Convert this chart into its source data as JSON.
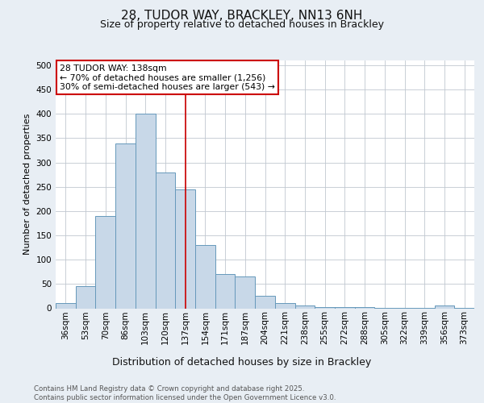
{
  "title_line1": "28, TUDOR WAY, BRACKLEY, NN13 6NH",
  "title_line2": "Size of property relative to detached houses in Brackley",
  "xlabel": "Distribution of detached houses by size in Brackley",
  "ylabel": "Number of detached properties",
  "footnote": "Contains HM Land Registry data © Crown copyright and database right 2025.\nContains public sector information licensed under the Open Government Licence v3.0.",
  "bin_labels": [
    "36sqm",
    "53sqm",
    "70sqm",
    "86sqm",
    "103sqm",
    "120sqm",
    "137sqm",
    "154sqm",
    "171sqm",
    "187sqm",
    "204sqm",
    "221sqm",
    "238sqm",
    "255sqm",
    "272sqm",
    "288sqm",
    "305sqm",
    "322sqm",
    "339sqm",
    "356sqm",
    "373sqm"
  ],
  "bar_heights": [
    10,
    45,
    190,
    340,
    400,
    280,
    245,
    130,
    70,
    65,
    25,
    10,
    5,
    3,
    2,
    3,
    1,
    1,
    1,
    5,
    1
  ],
  "bar_color": "#c8d8e8",
  "bar_edgecolor": "#6699bb",
  "vline_x_index": 6,
  "vline_color": "#cc0000",
  "annotation_text": "28 TUDOR WAY: 138sqm\n← 70% of detached houses are smaller (1,256)\n30% of semi-detached houses are larger (543) →",
  "annotation_box_color": "#ffffff",
  "annotation_box_edgecolor": "#cc0000",
  "ylim": [
    0,
    510
  ],
  "yticks": [
    0,
    50,
    100,
    150,
    200,
    250,
    300,
    350,
    400,
    450,
    500
  ],
  "background_color": "#e8eef4",
  "plot_background": "#ffffff",
  "grid_color": "#c0c8d0",
  "title_fontsize": 11,
  "subtitle_fontsize": 9,
  "ylabel_fontsize": 8,
  "tick_fontsize": 7.5,
  "annotation_fontsize": 7.8
}
